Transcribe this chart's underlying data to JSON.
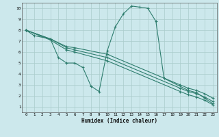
{
  "xlabel": "Humidex (Indice chaleur)",
  "bg_color": "#cce8ec",
  "line_color": "#2e7d6e",
  "grid_color": "#aacccc",
  "xlim": [
    -0.5,
    23.5
  ],
  "ylim": [
    0.5,
    10.5
  ],
  "xticks": [
    0,
    1,
    2,
    3,
    4,
    5,
    6,
    7,
    8,
    9,
    10,
    11,
    12,
    13,
    14,
    15,
    16,
    17,
    18,
    19,
    20,
    21,
    22,
    23
  ],
  "yticks": [
    1,
    2,
    3,
    4,
    5,
    6,
    7,
    8,
    9,
    10
  ],
  "series": [
    {
      "x": [
        0,
        1,
        3,
        4,
        5,
        6,
        7,
        8,
        9,
        10,
        11,
        12,
        13,
        14,
        15,
        16,
        17,
        20,
        21,
        22,
        23
      ],
      "y": [
        8.0,
        7.5,
        7.2,
        5.5,
        5.0,
        5.0,
        4.6,
        2.9,
        2.4,
        6.1,
        8.3,
        9.5,
        10.2,
        10.1,
        10.0,
        8.8,
        3.6,
        2.5,
        2.3,
        1.8,
        1.3
      ]
    },
    {
      "x": [
        0,
        3,
        5,
        6,
        10,
        19,
        20,
        21,
        22,
        23
      ],
      "y": [
        8.0,
        7.2,
        6.5,
        6.4,
        5.8,
        3.0,
        2.7,
        2.5,
        2.2,
        1.8
      ]
    },
    {
      "x": [
        0,
        3,
        5,
        6,
        10,
        19,
        20,
        21,
        22,
        23
      ],
      "y": [
        8.0,
        7.2,
        6.4,
        6.2,
        5.5,
        2.7,
        2.4,
        2.2,
        1.9,
        1.5
      ]
    },
    {
      "x": [
        0,
        3,
        5,
        6,
        10,
        19,
        20,
        21,
        22,
        23
      ],
      "y": [
        8.0,
        7.1,
        6.2,
        6.0,
        5.2,
        2.4,
        2.1,
        1.9,
        1.6,
        1.2
      ]
    }
  ]
}
